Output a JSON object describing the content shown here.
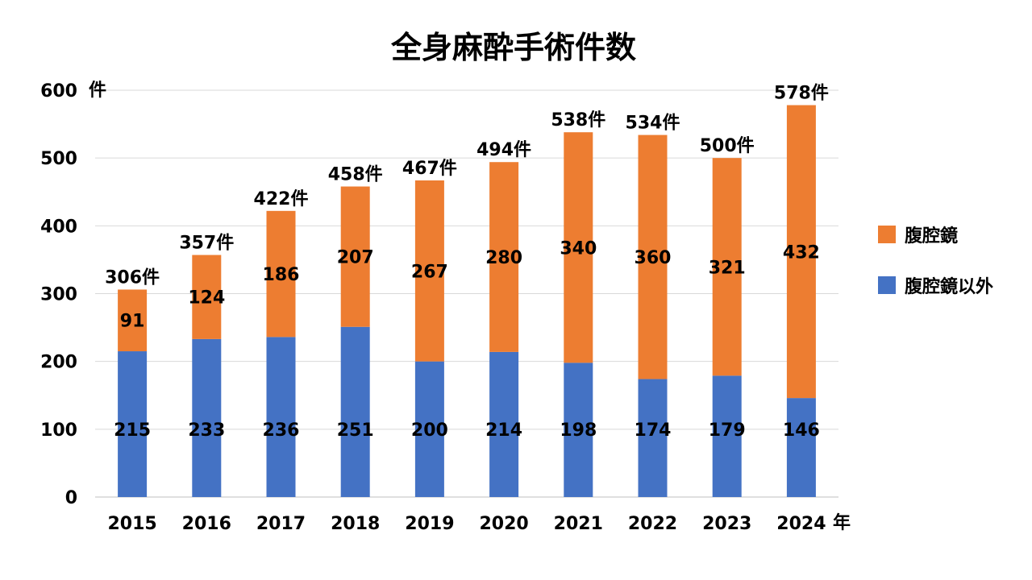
{
  "chart_data": {
    "type": "bar",
    "stacked": true,
    "title": "全身麻酔手術件数",
    "y_unit": "件",
    "x_unit": "年",
    "total_suffix": "件",
    "categories": [
      "2015",
      "2016",
      "2017",
      "2018",
      "2019",
      "2020",
      "2021",
      "2022",
      "2023",
      "2024"
    ],
    "series": [
      {
        "name": "腹腔鏡以外",
        "color": "#4472c4",
        "values": [
          215,
          233,
          236,
          251,
          200,
          214,
          198,
          174,
          179,
          146
        ]
      },
      {
        "name": "腹腔鏡",
        "color": "#ed7d31",
        "values": [
          91,
          124,
          186,
          207,
          267,
          280,
          340,
          360,
          321,
          432
        ]
      }
    ],
    "totals": [
      306,
      357,
      422,
      458,
      467,
      494,
      538,
      534,
      500,
      578
    ],
    "ylim": [
      0,
      600
    ],
    "yticks": [
      0,
      100,
      200,
      300,
      400,
      500,
      600
    ],
    "grid": true,
    "legend_position": "right",
    "legend_order": [
      "腹腔鏡",
      "腹腔鏡以外"
    ]
  }
}
